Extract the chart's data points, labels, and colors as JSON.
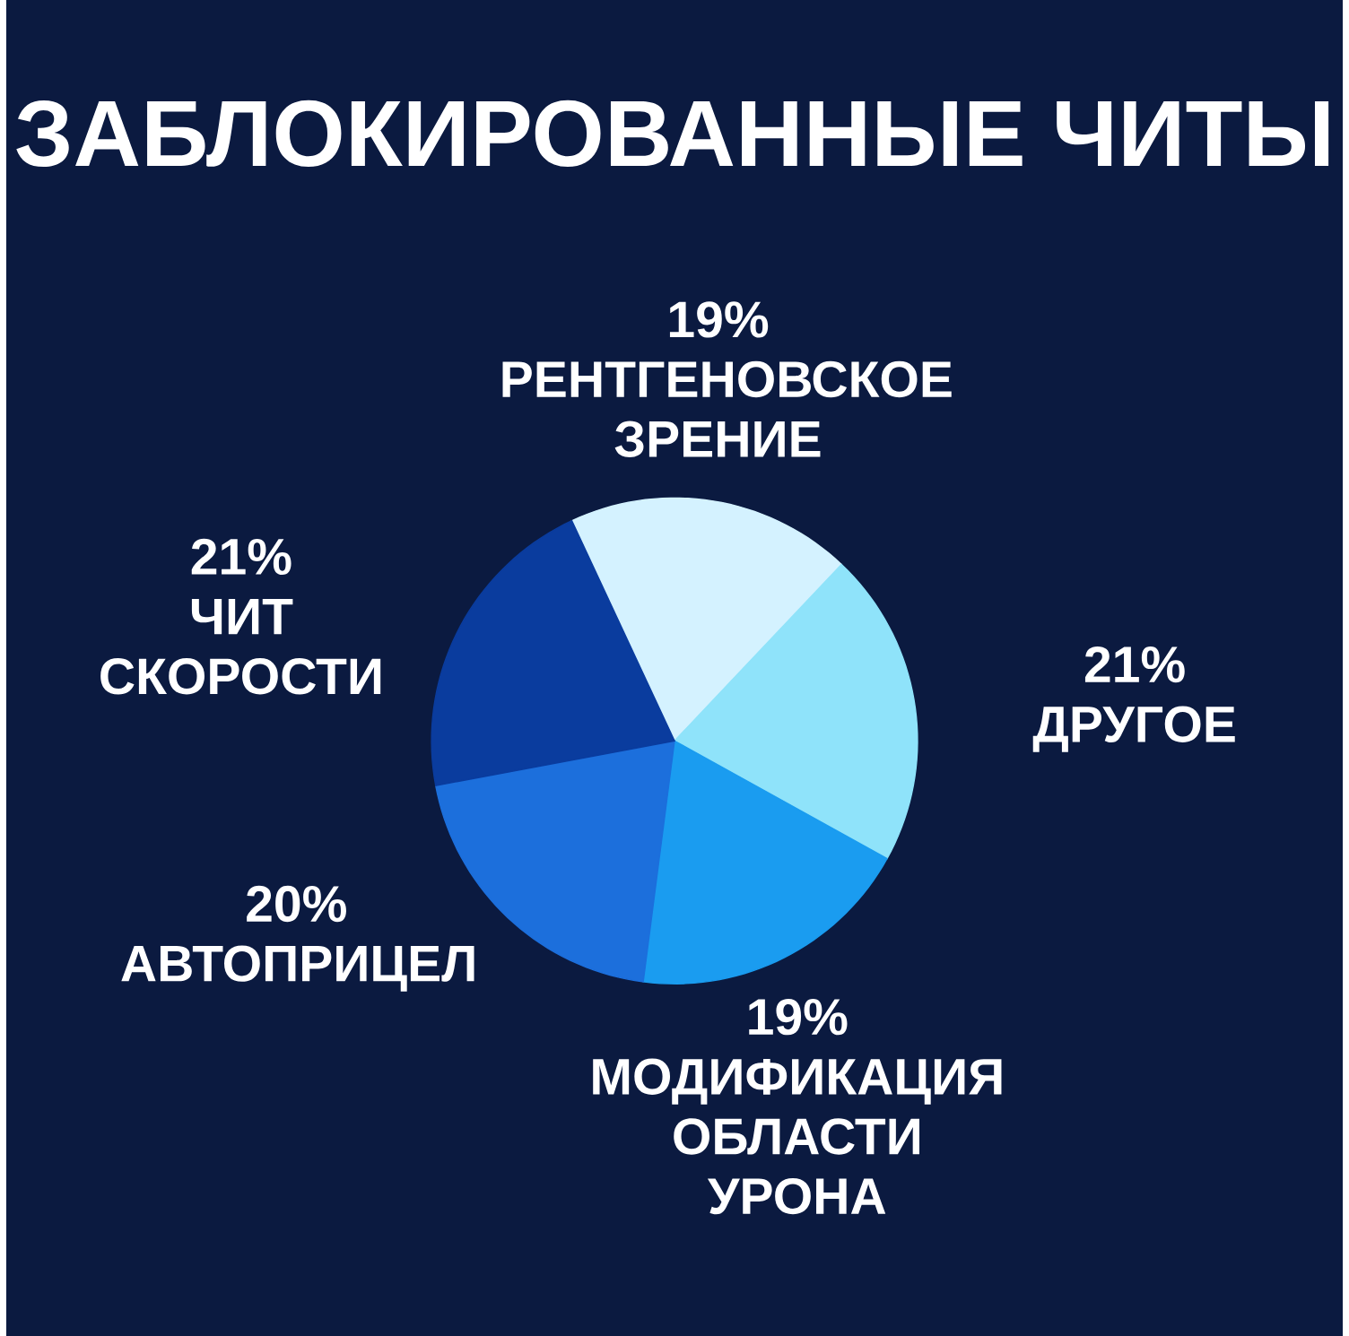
{
  "chart_data": {
    "type": "pie",
    "title": "ЗАБЛОКИРОВАННЫЕ ЧИТЫ",
    "categories": [
      "РЕНТГЕНОВСКОЕ ЗРЕНИЕ",
      "ДРУГОЕ",
      "МОДИФИКАЦИЯ ОБЛАСТИ УРОНА",
      "АВТОПРИЦЕЛ",
      "ЧИТ СКОРОСТИ"
    ],
    "values": [
      19,
      21,
      19,
      20,
      21
    ],
    "value_labels": [
      "19%",
      "21%",
      "19%",
      "20%",
      "21%"
    ],
    "colors": [
      "#d4f2ff",
      "#8fe3fa",
      "#1a9cf0",
      "#1c6fdc",
      "#0a3c9e"
    ]
  }
}
